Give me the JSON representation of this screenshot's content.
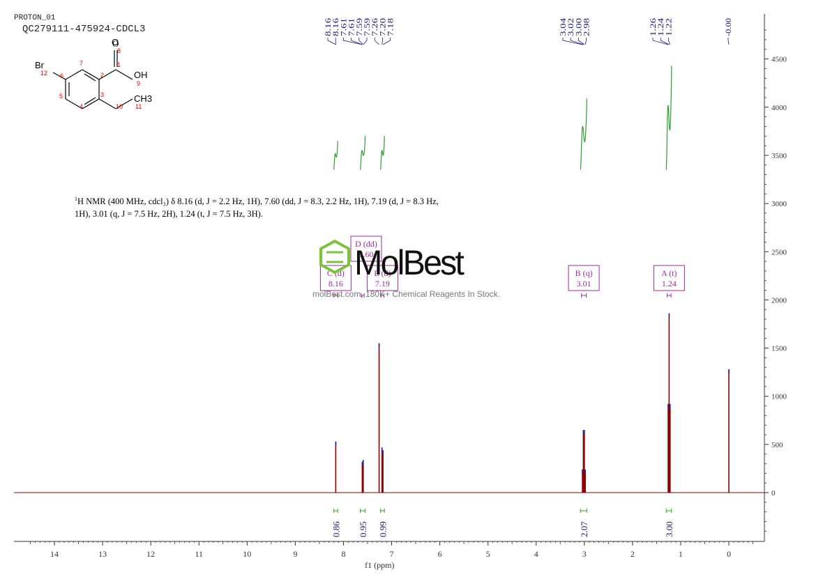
{
  "header": {
    "experiment": "PROTON_01",
    "sample": "QC279111-475924-CDCL3"
  },
  "structure": {
    "atoms": [
      {
        "symbol": "O",
        "number": "8"
      },
      {
        "symbol": "OH",
        "number": "9"
      },
      {
        "symbol": "Br",
        "number": "12"
      },
      {
        "symbol": "CH3",
        "number": "11"
      }
    ],
    "ring_numbers": [
      "1",
      "2",
      "3",
      "4",
      "5",
      "6",
      "7",
      "10"
    ]
  },
  "nmr_summary": {
    "nucleus_sup": "1",
    "text_line1": "H NMR (400 MHz, cdcl₃) δ 8.16 (d, J = 2.2 Hz, 1H), 7.60 (dd, J = 8.3, 2.2 Hz, 1H), 7.19 (d, J = 8.3 Hz,",
    "text_line2": "1H), 3.01 (q, J = 7.5 Hz, 2H), 1.24 (t, J = 7.5 Hz, 3H)."
  },
  "watermark": {
    "brand": "MolBest",
    "tagline": "molBest.com, 180K+ Chemical Reagents In Stock."
  },
  "chart_data": {
    "type": "line",
    "title": "",
    "xlabel": "f1 (ppm)",
    "ylabel": "",
    "xlim": [
      14.9,
      -0.65
    ],
    "ylim": [
      -500,
      4900
    ],
    "x_ticks": [
      "14",
      "13",
      "12",
      "11",
      "10",
      "9",
      "8",
      "7",
      "6",
      "5",
      "4",
      "3",
      "2",
      "1",
      "0"
    ],
    "x_tick_values": [
      14,
      13,
      12,
      11,
      10,
      9,
      8,
      7,
      6,
      5,
      4,
      3,
      2,
      1,
      0
    ],
    "y_ticks": [
      "0",
      "500",
      "1000",
      "1500",
      "2000",
      "2500",
      "3000",
      "3500",
      "4000",
      "4500"
    ],
    "y_tick_values": [
      0,
      500,
      1000,
      1500,
      2000,
      2500,
      3000,
      3500,
      4000,
      4500
    ],
    "peaks": [
      {
        "ppm": 8.16,
        "height": 530
      },
      {
        "ppm": 7.61,
        "height": 320
      },
      {
        "ppm": 7.59,
        "height": 340
      },
      {
        "ppm": 7.26,
        "height": 1550
      },
      {
        "ppm": 7.2,
        "height": 470
      },
      {
        "ppm": 7.18,
        "height": 440
      },
      {
        "ppm": 3.04,
        "height": 240
      },
      {
        "ppm": 3.02,
        "height": 650
      },
      {
        "ppm": 3.0,
        "height": 650
      },
      {
        "ppm": 2.98,
        "height": 240
      },
      {
        "ppm": 1.26,
        "height": 920
      },
      {
        "ppm": 1.24,
        "height": 1860
      },
      {
        "ppm": 1.22,
        "height": 920
      },
      {
        "ppm": 0.0,
        "height": 1280
      }
    ],
    "peak_labels": [
      {
        "ppm": 8.16,
        "label": "8.16"
      },
      {
        "ppm": 8.16,
        "label": "8.16"
      },
      {
        "ppm": 7.61,
        "label": "7.61"
      },
      {
        "ppm": 7.61,
        "label": "7.61"
      },
      {
        "ppm": 7.59,
        "label": "7.59"
      },
      {
        "ppm": 7.59,
        "label": "7.59"
      },
      {
        "ppm": 7.26,
        "label": "7.26"
      },
      {
        "ppm": 7.2,
        "label": "7.20"
      },
      {
        "ppm": 7.18,
        "label": "7.18"
      },
      {
        "ppm": 3.04,
        "label": "3.04"
      },
      {
        "ppm": 3.02,
        "label": "3.02"
      },
      {
        "ppm": 3.0,
        "label": "3.00"
      },
      {
        "ppm": 2.98,
        "label": "2.98"
      },
      {
        "ppm": 1.26,
        "label": "1.26"
      },
      {
        "ppm": 1.24,
        "label": "1.24"
      },
      {
        "ppm": 1.22,
        "label": "1.22"
      },
      {
        "ppm": 0.0,
        "label": "-0.00"
      }
    ],
    "integrals": [
      {
        "from": 8.2,
        "to": 8.12,
        "value": "0.86",
        "start": 3350,
        "end": 3650
      },
      {
        "from": 7.65,
        "to": 7.55,
        "value": "0.95",
        "start": 3350,
        "end": 3700
      },
      {
        "from": 7.23,
        "to": 7.15,
        "value": "0.99",
        "start": 3350,
        "end": 3700
      },
      {
        "from": 3.08,
        "to": 2.95,
        "value": "2.07",
        "start": 3350,
        "end": 4090
      },
      {
        "from": 1.3,
        "to": 1.19,
        "value": "3.00",
        "start": 3350,
        "end": 4430
      }
    ],
    "multiplets": [
      {
        "letter": "C",
        "mult": "(d)",
        "shift": "8.16",
        "from": 8.2,
        "to": 8.12
      },
      {
        "letter": "D",
        "mult": "(dd)",
        "shift": "7.60",
        "from": 7.63,
        "to": 7.57
      },
      {
        "letter": "E",
        "mult": "(d)",
        "shift": "7.19",
        "from": 7.22,
        "to": 7.16
      },
      {
        "letter": "B",
        "mult": "(q)",
        "shift": "3.01",
        "from": 3.06,
        "to": 2.96
      },
      {
        "letter": "A",
        "mult": "(t)",
        "shift": "1.24",
        "from": 1.28,
        "to": 1.2
      }
    ],
    "colors": {
      "spectrum": "#8b0000",
      "integral": "#2e9e2e",
      "peak_label": "#1a1a7a",
      "multiplet": "#9b2a9b",
      "axis": "#333333"
    }
  }
}
